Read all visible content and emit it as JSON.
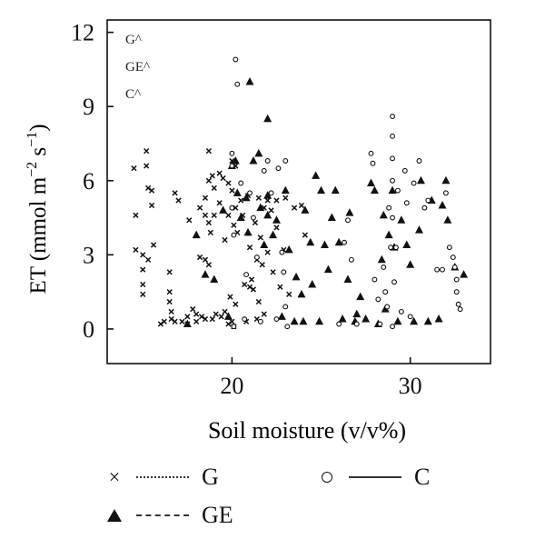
{
  "chart_data": {
    "type": "scatter",
    "xlabel": "Soil moisture (v/v%)",
    "ylabel_main": "ET (mmol m",
    "ylabel_sup1": "−2",
    "ylabel_mid": " s",
    "ylabel_sup2": "−1",
    "ylabel_end": ")",
    "xlim": [
      13,
      34.5
    ],
    "ylim": [
      -1.4,
      12.5
    ],
    "xticks": [
      20,
      30
    ],
    "yticks": [
      0,
      3,
      6,
      9,
      12
    ],
    "annotations": [
      "G^",
      "GE^",
      "C^"
    ],
    "grid": false,
    "legend_position": "below",
    "series": [
      {
        "name": "G",
        "marker": "x",
        "line": "dotted",
        "points": [
          [
            14.5,
            6.5
          ],
          [
            14.6,
            4.6
          ],
          [
            14.6,
            3.2
          ],
          [
            15.0,
            3.0
          ],
          [
            15.0,
            2.4
          ],
          [
            15.0,
            1.8
          ],
          [
            15.0,
            1.4
          ],
          [
            15.2,
            7.2
          ],
          [
            15.2,
            6.6
          ],
          [
            15.3,
            5.7
          ],
          [
            15.5,
            5.6
          ],
          [
            15.5,
            5.0
          ],
          [
            15.6,
            3.4
          ],
          [
            15.3,
            2.8
          ],
          [
            16.0,
            0.2
          ],
          [
            16.2,
            0.3
          ],
          [
            16.5,
            2.3
          ],
          [
            16.5,
            1.5
          ],
          [
            16.5,
            1.1
          ],
          [
            16.6,
            0.7
          ],
          [
            16.6,
            0.4
          ],
          [
            16.8,
            0.3
          ],
          [
            16.8,
            5.5
          ],
          [
            17.0,
            5.2
          ],
          [
            17.2,
            0.3
          ],
          [
            17.5,
            0.5
          ],
          [
            17.5,
            0.2
          ],
          [
            17.6,
            4.4
          ],
          [
            17.8,
            0.8
          ],
          [
            18.0,
            0.3
          ],
          [
            18.0,
            0.6
          ],
          [
            18.2,
            4.9
          ],
          [
            18.2,
            2.9
          ],
          [
            18.3,
            0.5
          ],
          [
            18.5,
            5.3
          ],
          [
            18.5,
            4.6
          ],
          [
            18.5,
            2.8
          ],
          [
            18.5,
            0.4
          ],
          [
            18.7,
            7.2
          ],
          [
            18.7,
            6.0
          ],
          [
            18.7,
            4.3
          ],
          [
            18.7,
            2.6
          ],
          [
            18.8,
            3.9
          ],
          [
            18.9,
            6.2
          ],
          [
            18.9,
            0.4
          ],
          [
            19.0,
            5.7
          ],
          [
            19.0,
            4.6
          ],
          [
            19.1,
            0.6
          ],
          [
            19.3,
            6.3
          ],
          [
            19.3,
            5.1
          ],
          [
            19.4,
            0.5
          ],
          [
            19.5,
            6.1
          ],
          [
            19.6,
            3.6
          ],
          [
            19.6,
            0.7
          ],
          [
            19.8,
            5.9
          ],
          [
            19.8,
            4.6
          ],
          [
            19.8,
            0.2
          ],
          [
            19.9,
            1.3
          ],
          [
            20.0,
            5.6
          ],
          [
            20.0,
            6.8
          ],
          [
            20.0,
            0.3
          ],
          [
            20.1,
            4.2
          ],
          [
            20.1,
            0.1
          ],
          [
            20.2,
            6.6
          ],
          [
            20.2,
            4.9
          ],
          [
            20.2,
            1.0
          ],
          [
            20.3,
            3.9
          ],
          [
            20.5,
            5.2
          ],
          [
            20.6,
            4.6
          ],
          [
            20.7,
            1.8
          ],
          [
            20.8,
            0.3
          ],
          [
            20.9,
            5.4
          ],
          [
            21.0,
            1.7
          ],
          [
            21.0,
            3.3
          ],
          [
            21.1,
            2.0
          ],
          [
            21.2,
            1.6
          ],
          [
            21.3,
            4.3
          ],
          [
            21.4,
            2.8
          ],
          [
            21.4,
            0.4
          ],
          [
            21.5,
            5.3
          ],
          [
            21.5,
            1.1
          ],
          [
            21.6,
            3.7
          ],
          [
            21.7,
            2.6
          ],
          [
            21.8,
            4.9
          ],
          [
            21.8,
            0.6
          ],
          [
            22.0,
            5.2
          ],
          [
            22.0,
            3.1
          ],
          [
            22.2,
            4.8
          ],
          [
            22.3,
            2.3
          ],
          [
            22.5,
            4.1
          ],
          [
            22.5,
            5.2
          ],
          [
            22.7,
            1.7
          ],
          [
            22.9,
            3.2
          ],
          [
            23.0,
            5.3
          ],
          [
            23.2,
            1.4
          ],
          [
            23.5,
            4.9
          ],
          [
            23.9,
            5.0
          ],
          [
            24.1,
            3.8
          ]
        ]
      },
      {
        "name": "GE",
        "marker": "triangle",
        "line": "dashed",
        "points": [
          [
            17.5,
            0.2
          ],
          [
            18.0,
            3.8
          ],
          [
            18.5,
            2.2
          ],
          [
            19.0,
            2.0
          ],
          [
            19.5,
            4.8
          ],
          [
            19.8,
            0.5
          ],
          [
            20.0,
            6.6
          ],
          [
            20.2,
            6.8
          ],
          [
            20.3,
            5.5
          ],
          [
            20.5,
            4.5
          ],
          [
            20.8,
            5.3
          ],
          [
            20.9,
            3.9
          ],
          [
            21.0,
            10.0
          ],
          [
            21.2,
            6.8
          ],
          [
            21.5,
            7.1
          ],
          [
            21.6,
            4.9
          ],
          [
            21.8,
            3.4
          ],
          [
            22.0,
            8.5
          ],
          [
            22.0,
            5.4
          ],
          [
            22.0,
            4.6
          ],
          [
            22.3,
            3.8
          ],
          [
            22.5,
            4.4
          ],
          [
            22.8,
            0.5
          ],
          [
            23.0,
            5.6
          ],
          [
            23.2,
            3.2
          ],
          [
            23.5,
            0.3
          ],
          [
            23.6,
            2.1
          ],
          [
            23.9,
            1.4
          ],
          [
            24.0,
            0.3
          ],
          [
            24.1,
            4.8
          ],
          [
            24.4,
            3.5
          ],
          [
            24.5,
            1.8
          ],
          [
            24.7,
            6.2
          ],
          [
            24.9,
            0.3
          ],
          [
            25.0,
            5.6
          ],
          [
            25.2,
            3.4
          ],
          [
            25.4,
            2.4
          ],
          [
            25.6,
            4.5
          ],
          [
            25.8,
            5.6
          ],
          [
            26.0,
            3.5
          ],
          [
            26.2,
            0.4
          ],
          [
            26.5,
            2.0
          ],
          [
            26.6,
            4.7
          ],
          [
            26.9,
            0.3
          ],
          [
            27.0,
            0.6
          ],
          [
            27.2,
            1.3
          ],
          [
            27.5,
            0.4
          ],
          [
            27.8,
            5.9
          ],
          [
            28.0,
            5.6
          ],
          [
            28.2,
            0.2
          ],
          [
            28.4,
            2.8
          ],
          [
            28.5,
            4.6
          ],
          [
            28.6,
            0.8
          ],
          [
            28.8,
            3.8
          ],
          [
            29.0,
            5.6
          ],
          [
            29.1,
            3.3
          ],
          [
            29.3,
            0.3
          ],
          [
            29.5,
            4.4
          ],
          [
            29.8,
            3.4
          ],
          [
            30.0,
            2.6
          ],
          [
            30.2,
            0.3
          ],
          [
            30.5,
            4.0
          ],
          [
            30.6,
            6.0
          ],
          [
            31.0,
            0.3
          ],
          [
            31.2,
            5.2
          ],
          [
            31.6,
            0.4
          ],
          [
            31.8,
            5.0
          ],
          [
            32.0,
            6.0
          ],
          [
            32.1,
            4.4
          ],
          [
            32.5,
            2.5
          ],
          [
            33.0,
            2.2
          ]
        ]
      },
      {
        "name": "C",
        "marker": "circle",
        "line": "solid",
        "points": [
          [
            20.0,
            7.1
          ],
          [
            20.0,
            6.6
          ],
          [
            20.0,
            4.9
          ],
          [
            20.1,
            3.8
          ],
          [
            20.1,
            0.1
          ],
          [
            20.2,
            10.9
          ],
          [
            20.3,
            9.9
          ],
          [
            20.5,
            5.9
          ],
          [
            20.7,
            0.4
          ],
          [
            20.8,
            2.2
          ],
          [
            21.0,
            5.5
          ],
          [
            21.2,
            4.5
          ],
          [
            21.4,
            2.9
          ],
          [
            21.6,
            0.3
          ],
          [
            21.8,
            6.4
          ],
          [
            22.0,
            6.8
          ],
          [
            22.2,
            5.5
          ],
          [
            22.5,
            0.4
          ],
          [
            22.6,
            6.5
          ],
          [
            22.8,
            3.1
          ],
          [
            22.9,
            2.3
          ],
          [
            23.0,
            6.8
          ],
          [
            23.0,
            0.9
          ],
          [
            23.1,
            0.1
          ],
          [
            26.0,
            0.2
          ],
          [
            26.3,
            3.5
          ],
          [
            26.5,
            4.4
          ],
          [
            26.7,
            2.8
          ],
          [
            27.0,
            0.2
          ],
          [
            27.8,
            7.1
          ],
          [
            27.9,
            6.7
          ],
          [
            28.0,
            2.0
          ],
          [
            28.2,
            1.2
          ],
          [
            28.3,
            0.2
          ],
          [
            28.5,
            2.5
          ],
          [
            28.6,
            1.5
          ],
          [
            28.7,
            0.9
          ],
          [
            28.8,
            4.9
          ],
          [
            28.9,
            3.3
          ],
          [
            29.0,
            8.6
          ],
          [
            29.0,
            7.8
          ],
          [
            29.0,
            6.9
          ],
          [
            29.0,
            6.0
          ],
          [
            29.0,
            4.5
          ],
          [
            29.0,
            0.1
          ],
          [
            29.1,
            1.9
          ],
          [
            29.2,
            3.3
          ],
          [
            29.3,
            5.6
          ],
          [
            29.5,
            0.7
          ],
          [
            29.7,
            6.4
          ],
          [
            29.8,
            5.1
          ],
          [
            30.0,
            0.5
          ],
          [
            30.2,
            5.9
          ],
          [
            30.5,
            6.8
          ],
          [
            30.8,
            4.9
          ],
          [
            31.0,
            5.2
          ],
          [
            31.5,
            2.4
          ],
          [
            31.8,
            2.4
          ],
          [
            32.0,
            5.5
          ],
          [
            32.2,
            3.3
          ],
          [
            32.4,
            2.9
          ],
          [
            32.5,
            2.5
          ],
          [
            32.6,
            2.0
          ],
          [
            32.6,
            1.5
          ],
          [
            32.7,
            1.0
          ],
          [
            32.8,
            0.8
          ]
        ]
      }
    ]
  },
  "legend": {
    "items": [
      {
        "label": "G"
      },
      {
        "label": "GE"
      },
      {
        "label": "C"
      }
    ]
  }
}
